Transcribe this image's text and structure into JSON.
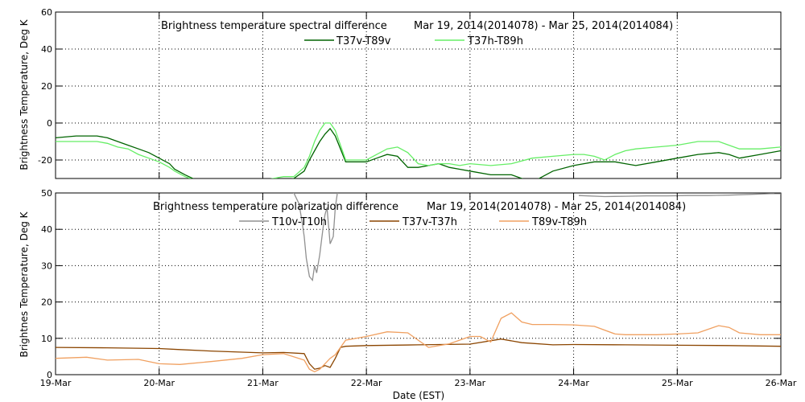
{
  "colors": {
    "t37v_t89v": "#006400",
    "t37h_t89h": "#66ee66",
    "t10v_t10h": "#909090",
    "t37v_t37h": "#8b4500",
    "t89v_t89h": "#f0a060",
    "grid": "#000000"
  },
  "chart_data": [
    {
      "type": "line",
      "title": "Brightness temperature spectral difference",
      "date_range": "Mar 19, 2014(2014078)  - Mar 25, 2014(2014084)",
      "xlabel": "",
      "ylabel": "Brightness Temperature, Deg K",
      "xlim": [
        0,
        7
      ],
      "ylim": [
        -30,
        60
      ],
      "yticks": [
        -20,
        0,
        20,
        40,
        60
      ],
      "grid": "dotted",
      "legend_position": "top-center",
      "series": [
        {
          "name": "T37v-T89v",
          "color": "#006400",
          "x": [
            0,
            0.2,
            0.4,
            0.5,
            0.6,
            0.7,
            0.8,
            0.9,
            1.0,
            1.1,
            1.15,
            1.25,
            1.4,
            1.6,
            1.8,
            2.0,
            2.1,
            2.2,
            2.3,
            2.4,
            2.45,
            2.5,
            2.55,
            2.6,
            2.65,
            2.7,
            2.8,
            3.0,
            3.1,
            3.2,
            3.3,
            3.4,
            3.5,
            3.6,
            3.7,
            3.8,
            3.9,
            4.0,
            4.2,
            4.4,
            4.6,
            4.8,
            5.0,
            5.1,
            5.2,
            5.3,
            5.4,
            5.5,
            5.6,
            5.8,
            6.0,
            6.2,
            6.4,
            6.5,
            6.6,
            6.8,
            7.0
          ],
          "y": [
            -8,
            -7,
            -7,
            -8,
            -10,
            -12,
            -14,
            -16,
            -19,
            -22,
            -25,
            -28,
            -32,
            -34,
            -34,
            -33,
            -32,
            -31,
            -30,
            -26,
            -20,
            -15,
            -10,
            -6,
            -3,
            -7,
            -21,
            -21,
            -19,
            -17,
            -18,
            -24,
            -24,
            -23,
            -22,
            -24,
            -25,
            -26,
            -28,
            -28,
            -32,
            -26,
            -23,
            -22,
            -21,
            -21,
            -21,
            -22,
            -23,
            -21,
            -19,
            -17,
            -16,
            -17,
            -19,
            -17,
            -15
          ]
        },
        {
          "name": "T37h-T89h",
          "color": "#66ee66",
          "x": [
            0,
            0.2,
            0.4,
            0.5,
            0.6,
            0.7,
            0.8,
            0.9,
            1.0,
            1.1,
            1.15,
            1.25,
            1.4,
            1.6,
            1.8,
            2.0,
            2.1,
            2.2,
            2.3,
            2.4,
            2.45,
            2.5,
            2.55,
            2.6,
            2.65,
            2.7,
            2.8,
            3.0,
            3.1,
            3.2,
            3.3,
            3.4,
            3.5,
            3.6,
            3.7,
            3.8,
            3.9,
            4.0,
            4.2,
            4.4,
            4.6,
            4.8,
            5.0,
            5.1,
            5.2,
            5.3,
            5.4,
            5.5,
            5.6,
            5.8,
            6.0,
            6.2,
            6.4,
            6.5,
            6.6,
            6.8,
            7.0
          ],
          "y": [
            -10,
            -10,
            -10,
            -11,
            -13,
            -14,
            -17,
            -19,
            -21,
            -24,
            -26,
            -29,
            -32,
            -33,
            -32,
            -31,
            -30,
            -29,
            -29,
            -24,
            -18,
            -10,
            -4,
            0,
            0,
            -4,
            -20,
            -20,
            -17,
            -14,
            -13,
            -16,
            -22,
            -23,
            -22,
            -22,
            -23,
            -22,
            -23,
            -22,
            -19,
            -18,
            -17,
            -17,
            -18,
            -20,
            -17,
            -15,
            -14,
            -13,
            -12,
            -10,
            -10,
            -12,
            -14,
            -14,
            -13
          ]
        }
      ]
    },
    {
      "type": "line",
      "title": "Brightness temperature polarization difference",
      "date_range": "Mar 19, 2014(2014078)  - Mar 25, 2014(2014084)",
      "xlabel": "Date (EST)",
      "ylabel": "Brightnes Temperature, Deg K",
      "xlim": [
        0,
        7
      ],
      "ylim": [
        0,
        50
      ],
      "yticks": [
        0,
        10,
        20,
        30,
        40,
        50
      ],
      "xtick_labels": [
        "19-Mar",
        "20-Mar",
        "21-Mar",
        "22-Mar",
        "23-Mar",
        "24-Mar",
        "25-Mar",
        "26-Mar"
      ],
      "grid": "dotted",
      "legend_position": "top-center",
      "series": [
        {
          "name": "T10v-T10h",
          "color": "#909090",
          "x": [
            2.25,
            2.3,
            2.35,
            2.38,
            2.4,
            2.42,
            2.45,
            2.48,
            2.5,
            2.52,
            2.55,
            2.58,
            2.6,
            2.62,
            2.65,
            2.68,
            2.7,
            2.72,
            2.75
          ],
          "y": [
            51,
            50,
            47,
            42,
            38,
            32,
            27,
            26,
            30,
            28,
            33,
            40,
            44,
            46,
            36,
            38,
            46,
            50,
            51
          ],
          "segment2": {
            "x": [
              5.05,
              5.3,
              5.5,
              5.7,
              5.9,
              6.1,
              6.3,
              6.5,
              6.7,
              6.9,
              7.0
            ],
            "y": [
              49.3,
              49.0,
              49.1,
              49.2,
              49.2,
              49.3,
              49.3,
              49.4,
              49.6,
              49.8,
              49.8
            ]
          }
        },
        {
          "name": "T37v-T37h",
          "color": "#8b4500",
          "x": [
            0,
            0.5,
            1.0,
            1.2,
            1.5,
            1.8,
            2.0,
            2.2,
            2.4,
            2.45,
            2.5,
            2.55,
            2.6,
            2.65,
            2.7,
            2.75,
            2.8,
            3.0,
            3.5,
            4.0,
            4.3,
            4.5,
            4.8,
            5.0,
            5.5,
            6.0,
            6.5,
            7.0
          ],
          "y": [
            7.5,
            7.4,
            7.2,
            6.9,
            6.5,
            6.2,
            6.0,
            6.1,
            5.8,
            3.0,
            1.5,
            1.8,
            2.5,
            2.0,
            4.5,
            7.5,
            7.8,
            8.0,
            8.2,
            8.4,
            9.8,
            8.8,
            8.2,
            8.3,
            8.2,
            8.1,
            8.0,
            7.8
          ]
        },
        {
          "name": "T89v-T89h",
          "color": "#f0a060",
          "x": [
            0,
            0.3,
            0.5,
            0.8,
            1.0,
            1.2,
            1.5,
            1.8,
            2.0,
            2.2,
            2.4,
            2.45,
            2.5,
            2.55,
            2.6,
            2.65,
            2.7,
            2.8,
            3.0,
            3.2,
            3.4,
            3.5,
            3.6,
            3.8,
            4.0,
            4.1,
            4.2,
            4.3,
            4.4,
            4.5,
            4.6,
            4.7,
            4.8,
            5.0,
            5.2,
            5.4,
            5.5,
            5.6,
            5.8,
            6.0,
            6.2,
            6.4,
            6.5,
            6.6,
            6.8,
            7.0
          ],
          "y": [
            4.5,
            4.8,
            4.0,
            4.2,
            3.0,
            2.8,
            3.6,
            4.5,
            5.5,
            5.8,
            4.0,
            1.5,
            0.8,
            1.5,
            3.0,
            4.5,
            5.5,
            9.5,
            10.5,
            11.8,
            11.5,
            9.5,
            7.5,
            8.5,
            10.5,
            10.5,
            9.0,
            15.5,
            17.0,
            14.5,
            13.8,
            13.8,
            13.8,
            13.7,
            13.3,
            11.2,
            11.0,
            11.0,
            11.0,
            11.2,
            11.5,
            13.5,
            13.0,
            11.5,
            11.0,
            11.0
          ]
        }
      ]
    }
  ]
}
